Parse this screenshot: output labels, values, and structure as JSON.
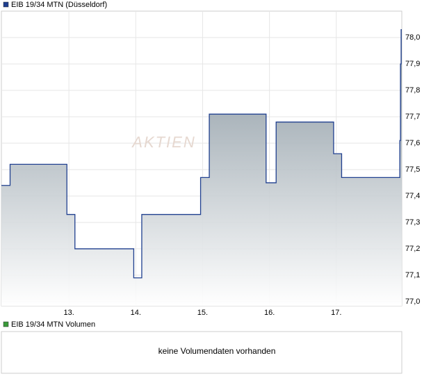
{
  "chart_data": {
    "type": "line",
    "title": "EIB 19/34 MTN (Düsseldorf)",
    "x": [
      11.99,
      12.12,
      12.97,
      13.09,
      13.97,
      14.09,
      14.97,
      15.1,
      15.95,
      16.1,
      16.96,
      17.08,
      17.95,
      17.96,
      17.97
    ],
    "series": [
      {
        "name": "EIB 19/34 MTN (Düsseldorf)",
        "color": "#1f3f8f",
        "values": [
          77.44,
          77.52,
          77.33,
          77.2,
          77.09,
          77.33,
          77.47,
          77.71,
          77.45,
          77.68,
          77.56,
          77.47,
          77.61,
          77.9,
          78.03
        ]
      }
    ],
    "xlim": [
      11.99,
      17.98
    ],
    "xticks": [
      {
        "value": 13,
        "label": "13."
      },
      {
        "value": 14,
        "label": "14."
      },
      {
        "value": 15,
        "label": "15."
      },
      {
        "value": 16,
        "label": "16."
      },
      {
        "value": 17,
        "label": "17."
      }
    ],
    "ylim": [
      76.984,
      78.1
    ],
    "yticks": [
      {
        "value": 77.0,
        "label": "77,0"
      },
      {
        "value": 77.1,
        "label": "77,1"
      },
      {
        "value": 77.2,
        "label": "77,2"
      },
      {
        "value": 77.3,
        "label": "77,3"
      },
      {
        "value": 77.4,
        "label": "77,4"
      },
      {
        "value": 77.5,
        "label": "77,5"
      },
      {
        "value": 77.6,
        "label": "77,6"
      },
      {
        "value": 77.7,
        "label": "77,7"
      },
      {
        "value": 77.8,
        "label": "77,8"
      },
      {
        "value": 77.9,
        "label": "77,9"
      },
      {
        "value": 78.0,
        "label": "78,0"
      }
    ],
    "grid": true,
    "watermark": "AKTIEN",
    "volume_legend": "EIB 19/34 MTN Volumen",
    "volume_legend_color": "#3a9a3a",
    "volume_message": "keine Volumendaten vorhanden"
  }
}
